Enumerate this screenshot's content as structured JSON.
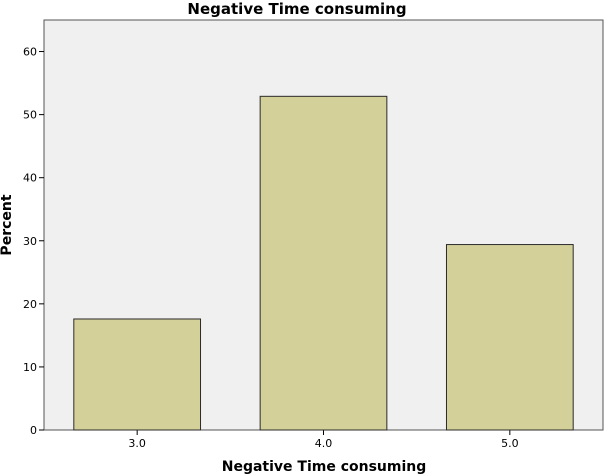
{
  "chart_data": {
    "type": "bar",
    "title": "Negative Time consuming",
    "xlabel": "Negative Time consuming",
    "ylabel": "Percent",
    "categories": [
      "3.0",
      "4.0",
      "5.0"
    ],
    "values": [
      17.6,
      52.9,
      29.4
    ],
    "ylim": [
      0,
      65
    ],
    "yticks": [
      "0",
      "10",
      "20",
      "30",
      "40",
      "50",
      "60"
    ],
    "grid": false,
    "colors": {
      "bar_fill": "#d4d09a",
      "bar_stroke": "#2b2b2b",
      "plot_bg": "#f0f0f0",
      "frame": "#555555"
    }
  }
}
